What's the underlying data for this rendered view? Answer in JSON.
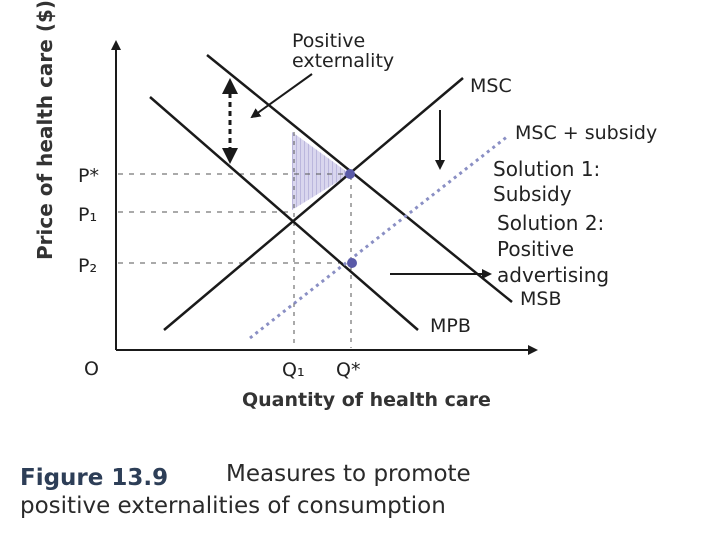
{
  "figure": {
    "y_axis_title": "Price of health care ($)",
    "x_axis_title": "Quantity of health care",
    "origin_label": "O",
    "price_labels": {
      "p_star": "P*",
      "p1": "P₁",
      "p2": "P₂"
    },
    "quantity_labels": {
      "q1": "Q₁",
      "q_star": "Q*"
    },
    "curve_labels": {
      "msc": "MSC",
      "msc_subsidy": "MSC + subsidy",
      "mpb": "MPB",
      "msb": "MSB"
    },
    "annotations": {
      "positive_externality": [
        "Positive",
        "externality"
      ],
      "solutions": [
        "Solution 1:",
        "Subsidy",
        "Solution 2:",
        "Positive",
        "advertising"
      ]
    },
    "caption": {
      "number": "Figure 13.9",
      "title_line1": "Measures to promote",
      "title_line2": "positive externalities of consumption"
    },
    "colors": {
      "ink": "#1a1a1a",
      "dotted_curve": "#8a8fc4",
      "point": "#5a5aa8",
      "shaded_area": "#c9c6e3",
      "caption_key": "#2d3e57"
    }
  }
}
